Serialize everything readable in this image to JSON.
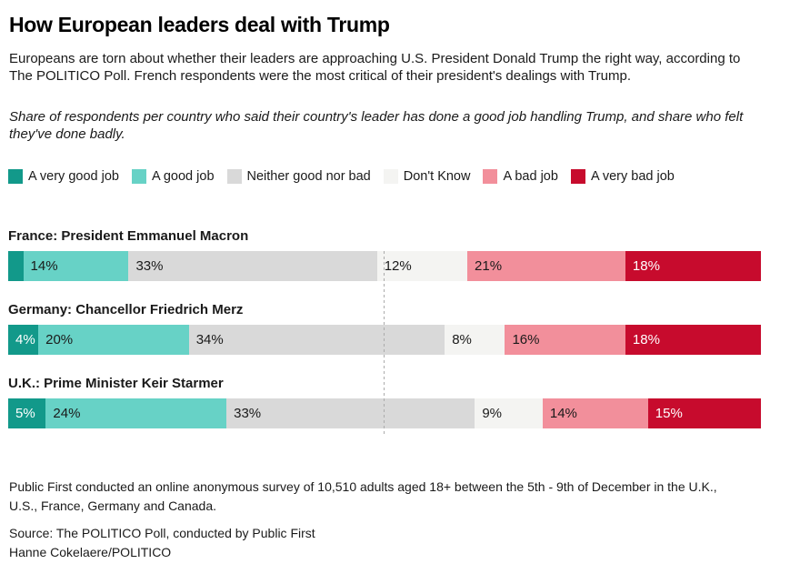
{
  "header": {
    "title": "How European leaders deal with Trump",
    "intro": "Europeans are torn about whether their leaders are approaching U.S. President Donald Trump the right way, according to The POLITICO Poll. French respondents were the most critical of their president's dealings with Trump.",
    "note": "Share of respondents per country who said their country's leader has done a good job handling Trump, and share who felt they've done badly."
  },
  "chart_data": {
    "type": "bar",
    "stacked": true,
    "orientation": "horizontal",
    "unit": "%",
    "x_max": 100,
    "midline_percent": 50,
    "grid": false,
    "legend_position": "top",
    "series": [
      {
        "name": "A very good job",
        "color": "#12998a",
        "label_color": "#ffffff"
      },
      {
        "name": "A good job",
        "color": "#67d2c6",
        "label_color": "#1a1a1a"
      },
      {
        "name": "Neither good nor bad",
        "color": "#d9d9d9",
        "label_color": "#1a1a1a"
      },
      {
        "name": "Don't Know",
        "color": "#f4f4f2",
        "label_color": "#1a1a1a"
      },
      {
        "name": "A bad job",
        "color": "#f28f9b",
        "label_color": "#1a1a1a"
      },
      {
        "name": "A very bad job",
        "color": "#c70b2d",
        "label_color": "#ffffff"
      }
    ],
    "rows": [
      {
        "label": "France: President Emmanuel Macron",
        "values": [
          2,
          14,
          33,
          12,
          21,
          18
        ],
        "value_labels": [
          "",
          "14%",
          "33%",
          "12%",
          "21%",
          "18%"
        ]
      },
      {
        "label": "Germany: Chancellor Friedrich Merz",
        "values": [
          4,
          20,
          34,
          8,
          16,
          18
        ],
        "value_labels": [
          "4%",
          "20%",
          "34%",
          "8%",
          "16%",
          "18%"
        ]
      },
      {
        "label": "U.K.: Prime Minister Keir Starmer",
        "values": [
          5,
          24,
          33,
          9,
          14,
          15
        ],
        "value_labels": [
          "5%",
          "24%",
          "33%",
          "9%",
          "14%",
          "15%"
        ]
      }
    ]
  },
  "footer": {
    "methodology": "Public First conducted an online anonymous survey of 10,510 adults aged 18+ between the 5th - 9th of December in the U.K., U.S., France, Germany and Canada.",
    "source": "Source: The POLITICO Poll, conducted by Public First",
    "byline": "Hanne Cokelaere/POLITICO"
  }
}
